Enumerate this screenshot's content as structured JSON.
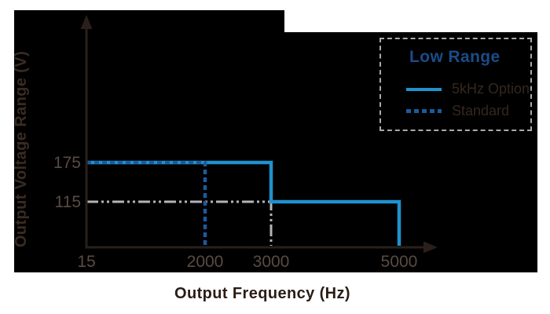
{
  "figure": {
    "page_background": "#ffffff",
    "figure_background": "#000000"
  },
  "chart_data": {
    "type": "line",
    "title": "",
    "xlabel": "Output Frequency (Hz)",
    "ylabel": "Output Voltage Range (V)",
    "x_ticks": [
      15,
      2000,
      3000,
      5000
    ],
    "x_tick_labels": [
      "15",
      "2000",
      "3000",
      "5000"
    ],
    "y_ticks": [
      175,
      115
    ],
    "y_tick_labels": [
      "175",
      "115"
    ],
    "xlim": [
      15,
      5600
    ],
    "ylim": [
      0,
      230
    ],
    "grid": false,
    "axis_color": "#2a1f1a",
    "legend": {
      "position": "top-right",
      "title": "Low Range",
      "title_color": "#1a4c88",
      "border_color": "#a9a9a9",
      "items": [
        {
          "label": "5kHz Option",
          "style": "solid",
          "color": "#2191cd"
        },
        {
          "label": "Standard",
          "style": "dashed",
          "color": "#1e5a9b"
        }
      ]
    },
    "series": [
      {
        "name": "5kHz Option",
        "style": "solid",
        "color": "#2191cd",
        "points": [
          [
            15,
            175
          ],
          [
            3000,
            175
          ],
          [
            3000,
            115
          ],
          [
            5000,
            115
          ],
          [
            5000,
            0
          ]
        ]
      },
      {
        "name": "Standard",
        "style": "dashed",
        "color": "#1e5a9b",
        "points": [
          [
            15,
            175
          ],
          [
            2000,
            175
          ],
          [
            2000,
            0
          ]
        ]
      }
    ],
    "reference_lines": [
      {
        "name": "115V guide",
        "style": "dashdot",
        "color": "#b5b5b5",
        "points": [
          [
            15,
            115
          ],
          [
            3000,
            115
          ],
          [
            3000,
            0
          ]
        ]
      }
    ]
  }
}
